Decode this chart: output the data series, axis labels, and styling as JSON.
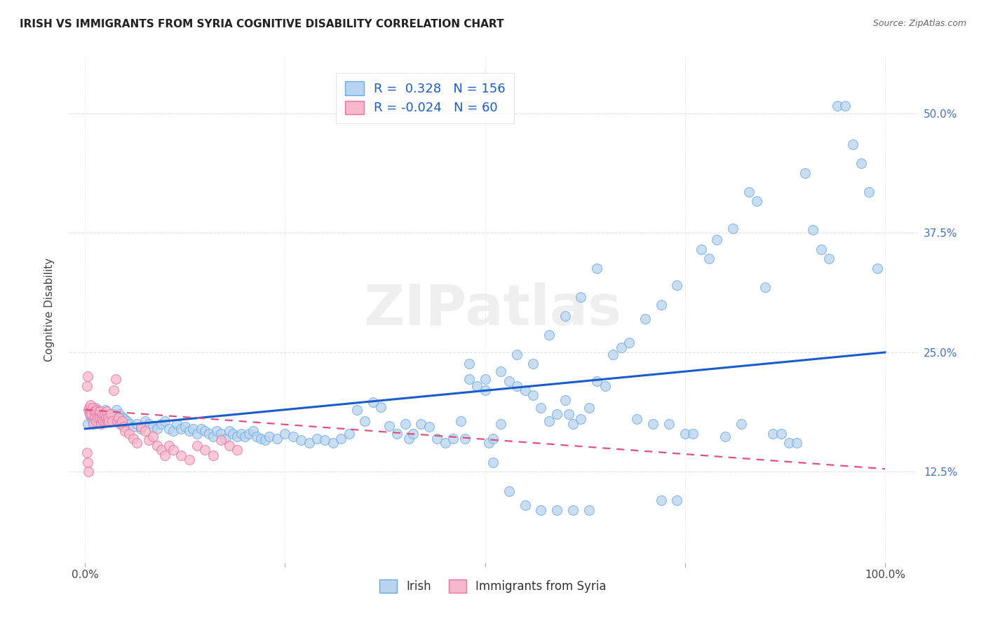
{
  "title": "IRISH VS IMMIGRANTS FROM SYRIA COGNITIVE DISABILITY CORRELATION CHART",
  "source": "Source: ZipAtlas.com",
  "ylabel": "Cognitive Disability",
  "xticks": [
    0.0,
    0.25,
    0.5,
    0.75,
    1.0
  ],
  "xtick_labels": [
    "0.0%",
    "",
    "",
    "",
    "100.0%"
  ],
  "xlim": [
    -0.02,
    1.04
  ],
  "ylim": [
    0.03,
    0.56
  ],
  "ytick_vals": [
    0.125,
    0.25,
    0.375,
    0.5
  ],
  "ytick_labels": [
    "12.5%",
    "25.0%",
    "37.5%",
    "50.0%"
  ],
  "legend_irish_r": "0.328",
  "legend_irish_n": "156",
  "legend_syria_r": "-0.024",
  "legend_syria_n": "60",
  "irish_face_color": "#b8d4f0",
  "irish_edge_color": "#6aa8e0",
  "syria_face_color": "#f8b8cc",
  "syria_edge_color": "#e870a0",
  "irish_line_color": "#1a5ccc",
  "syria_line_color": "#e05080",
  "watermark": "ZIPatlas",
  "background_color": "#ffffff",
  "grid_color": "#cccccc",
  "irish_line_x": [
    0.0,
    1.0
  ],
  "irish_line_y": [
    0.17,
    0.25
  ],
  "syria_line_x": [
    0.0,
    1.0
  ],
  "syria_line_y": [
    0.19,
    0.128
  ],
  "irish_points": [
    [
      0.003,
      0.175
    ],
    [
      0.005,
      0.19
    ],
    [
      0.007,
      0.183
    ],
    [
      0.009,
      0.178
    ],
    [
      0.011,
      0.185
    ],
    [
      0.013,
      0.192
    ],
    [
      0.015,
      0.178
    ],
    [
      0.017,
      0.188
    ],
    [
      0.019,
      0.18
    ],
    [
      0.021,
      0.185
    ],
    [
      0.023,
      0.178
    ],
    [
      0.025,
      0.19
    ],
    [
      0.027,
      0.182
    ],
    [
      0.029,
      0.178
    ],
    [
      0.031,
      0.185
    ],
    [
      0.033,
      0.178
    ],
    [
      0.035,
      0.185
    ],
    [
      0.037,
      0.18
    ],
    [
      0.039,
      0.19
    ],
    [
      0.041,
      0.178
    ],
    [
      0.043,
      0.185
    ],
    [
      0.045,
      0.175
    ],
    [
      0.047,
      0.182
    ],
    [
      0.049,
      0.18
    ],
    [
      0.052,
      0.178
    ],
    [
      0.056,
      0.175
    ],
    [
      0.06,
      0.172
    ],
    [
      0.065,
      0.175
    ],
    [
      0.07,
      0.17
    ],
    [
      0.075,
      0.178
    ],
    [
      0.08,
      0.175
    ],
    [
      0.085,
      0.172
    ],
    [
      0.09,
      0.17
    ],
    [
      0.095,
      0.175
    ],
    [
      0.1,
      0.178
    ],
    [
      0.105,
      0.17
    ],
    [
      0.11,
      0.168
    ],
    [
      0.115,
      0.175
    ],
    [
      0.12,
      0.17
    ],
    [
      0.125,
      0.172
    ],
    [
      0.13,
      0.168
    ],
    [
      0.135,
      0.17
    ],
    [
      0.14,
      0.165
    ],
    [
      0.145,
      0.17
    ],
    [
      0.15,
      0.168
    ],
    [
      0.155,
      0.165
    ],
    [
      0.16,
      0.162
    ],
    [
      0.165,
      0.168
    ],
    [
      0.17,
      0.165
    ],
    [
      0.175,
      0.16
    ],
    [
      0.18,
      0.168
    ],
    [
      0.185,
      0.165
    ],
    [
      0.19,
      0.162
    ],
    [
      0.195,
      0.165
    ],
    [
      0.2,
      0.162
    ],
    [
      0.205,
      0.165
    ],
    [
      0.21,
      0.168
    ],
    [
      0.215,
      0.162
    ],
    [
      0.22,
      0.16
    ],
    [
      0.225,
      0.158
    ],
    [
      0.23,
      0.162
    ],
    [
      0.24,
      0.16
    ],
    [
      0.25,
      0.165
    ],
    [
      0.26,
      0.162
    ],
    [
      0.27,
      0.158
    ],
    [
      0.28,
      0.155
    ],
    [
      0.29,
      0.16
    ],
    [
      0.3,
      0.158
    ],
    [
      0.31,
      0.155
    ],
    [
      0.32,
      0.16
    ],
    [
      0.33,
      0.165
    ],
    [
      0.34,
      0.19
    ],
    [
      0.35,
      0.178
    ],
    [
      0.36,
      0.198
    ],
    [
      0.37,
      0.193
    ],
    [
      0.38,
      0.173
    ],
    [
      0.39,
      0.165
    ],
    [
      0.4,
      0.175
    ],
    [
      0.405,
      0.16
    ],
    [
      0.41,
      0.165
    ],
    [
      0.42,
      0.175
    ],
    [
      0.43,
      0.172
    ],
    [
      0.44,
      0.16
    ],
    [
      0.45,
      0.155
    ],
    [
      0.46,
      0.16
    ],
    [
      0.47,
      0.178
    ],
    [
      0.475,
      0.16
    ],
    [
      0.48,
      0.222
    ],
    [
      0.49,
      0.215
    ],
    [
      0.5,
      0.21
    ],
    [
      0.505,
      0.155
    ],
    [
      0.51,
      0.16
    ],
    [
      0.52,
      0.175
    ],
    [
      0.53,
      0.22
    ],
    [
      0.54,
      0.215
    ],
    [
      0.55,
      0.21
    ],
    [
      0.56,
      0.205
    ],
    [
      0.57,
      0.192
    ],
    [
      0.58,
      0.178
    ],
    [
      0.59,
      0.185
    ],
    [
      0.6,
      0.2
    ],
    [
      0.605,
      0.185
    ],
    [
      0.61,
      0.175
    ],
    [
      0.62,
      0.18
    ],
    [
      0.63,
      0.192
    ],
    [
      0.64,
      0.22
    ],
    [
      0.65,
      0.215
    ],
    [
      0.66,
      0.248
    ],
    [
      0.67,
      0.255
    ],
    [
      0.68,
      0.26
    ],
    [
      0.69,
      0.18
    ],
    [
      0.7,
      0.285
    ],
    [
      0.71,
      0.175
    ],
    [
      0.72,
      0.3
    ],
    [
      0.73,
      0.175
    ],
    [
      0.74,
      0.32
    ],
    [
      0.75,
      0.165
    ],
    [
      0.76,
      0.165
    ],
    [
      0.77,
      0.358
    ],
    [
      0.78,
      0.348
    ],
    [
      0.79,
      0.368
    ],
    [
      0.8,
      0.162
    ],
    [
      0.81,
      0.38
    ],
    [
      0.82,
      0.175
    ],
    [
      0.83,
      0.418
    ],
    [
      0.84,
      0.408
    ],
    [
      0.85,
      0.318
    ],
    [
      0.86,
      0.165
    ],
    [
      0.87,
      0.165
    ],
    [
      0.88,
      0.155
    ],
    [
      0.89,
      0.155
    ],
    [
      0.9,
      0.438
    ],
    [
      0.91,
      0.378
    ],
    [
      0.92,
      0.358
    ],
    [
      0.93,
      0.348
    ],
    [
      0.94,
      0.508
    ],
    [
      0.95,
      0.508
    ],
    [
      0.96,
      0.468
    ],
    [
      0.97,
      0.448
    ],
    [
      0.98,
      0.418
    ],
    [
      0.99,
      0.338
    ],
    [
      0.48,
      0.238
    ],
    [
      0.5,
      0.222
    ],
    [
      0.52,
      0.23
    ],
    [
      0.54,
      0.248
    ],
    [
      0.56,
      0.238
    ],
    [
      0.58,
      0.268
    ],
    [
      0.6,
      0.288
    ],
    [
      0.62,
      0.308
    ],
    [
      0.64,
      0.338
    ],
    [
      0.51,
      0.135
    ],
    [
      0.53,
      0.105
    ],
    [
      0.55,
      0.09
    ],
    [
      0.57,
      0.085
    ],
    [
      0.59,
      0.085
    ],
    [
      0.61,
      0.085
    ],
    [
      0.63,
      0.085
    ],
    [
      0.72,
      0.095
    ],
    [
      0.74,
      0.095
    ]
  ],
  "syria_points": [
    [
      0.002,
      0.215
    ],
    [
      0.003,
      0.225
    ],
    [
      0.004,
      0.19
    ],
    [
      0.005,
      0.192
    ],
    [
      0.006,
      0.185
    ],
    [
      0.007,
      0.195
    ],
    [
      0.008,
      0.185
    ],
    [
      0.009,
      0.192
    ],
    [
      0.01,
      0.175
    ],
    [
      0.011,
      0.188
    ],
    [
      0.012,
      0.182
    ],
    [
      0.013,
      0.188
    ],
    [
      0.014,
      0.178
    ],
    [
      0.015,
      0.19
    ],
    [
      0.016,
      0.182
    ],
    [
      0.017,
      0.188
    ],
    [
      0.018,
      0.182
    ],
    [
      0.019,
      0.188
    ],
    [
      0.02,
      0.175
    ],
    [
      0.021,
      0.182
    ],
    [
      0.022,
      0.185
    ],
    [
      0.023,
      0.178
    ],
    [
      0.024,
      0.185
    ],
    [
      0.025,
      0.178
    ],
    [
      0.026,
      0.182
    ],
    [
      0.027,
      0.188
    ],
    [
      0.028,
      0.178
    ],
    [
      0.029,
      0.182
    ],
    [
      0.03,
      0.178
    ],
    [
      0.032,
      0.185
    ],
    [
      0.034,
      0.178
    ],
    [
      0.036,
      0.21
    ],
    [
      0.038,
      0.222
    ],
    [
      0.04,
      0.178
    ],
    [
      0.042,
      0.182
    ],
    [
      0.044,
      0.175
    ],
    [
      0.046,
      0.178
    ],
    [
      0.048,
      0.172
    ],
    [
      0.05,
      0.168
    ],
    [
      0.055,
      0.165
    ],
    [
      0.06,
      0.16
    ],
    [
      0.065,
      0.155
    ],
    [
      0.07,
      0.172
    ],
    [
      0.075,
      0.168
    ],
    [
      0.08,
      0.158
    ],
    [
      0.085,
      0.162
    ],
    [
      0.09,
      0.152
    ],
    [
      0.095,
      0.148
    ],
    [
      0.1,
      0.142
    ],
    [
      0.105,
      0.152
    ],
    [
      0.11,
      0.148
    ],
    [
      0.12,
      0.142
    ],
    [
      0.13,
      0.138
    ],
    [
      0.14,
      0.152
    ],
    [
      0.15,
      0.148
    ],
    [
      0.16,
      0.142
    ],
    [
      0.17,
      0.158
    ],
    [
      0.18,
      0.152
    ],
    [
      0.19,
      0.148
    ],
    [
      0.002,
      0.145
    ],
    [
      0.003,
      0.135
    ],
    [
      0.004,
      0.125
    ]
  ]
}
